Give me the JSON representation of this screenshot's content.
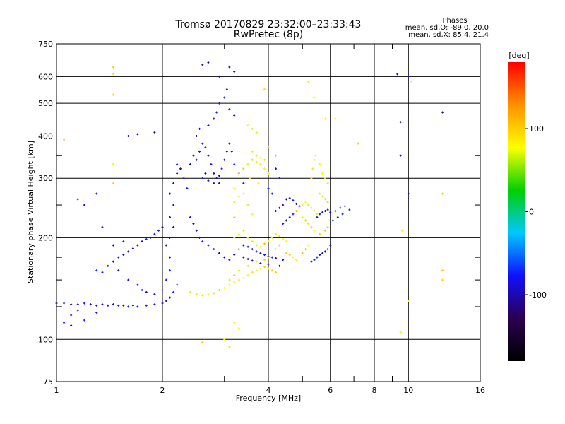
{
  "chart_data": {
    "type": "scatter",
    "title": "Tromsø 20170829 23:32:00–23:33:43",
    "subtitle": "RwPretec (8p)",
    "xlabel": "Frequency [MHz]",
    "ylabel": "Stationary phase Virtual Height [km]",
    "xscale": "log",
    "yscale": "log",
    "xlim": [
      1,
      16
    ],
    "ylim": [
      75,
      750
    ],
    "x_ticks": [
      1,
      2,
      4,
      6,
      8,
      10,
      16
    ],
    "x_minor_ticks": [
      3,
      5,
      7,
      9
    ],
    "y_ticks": [
      75,
      100,
      200,
      300,
      400,
      500,
      600,
      750
    ],
    "y_minor_ticks": [
      125,
      150,
      175,
      250,
      350
    ],
    "grid": true,
    "stats": {
      "header": "Phases",
      "line_o": "mean, sd,O: -89.0, 20.0",
      "line_x": "mean, sd,X:  85.4, 21.4"
    },
    "colorbar": {
      "label": "[deg]",
      "min": -180,
      "max": 180,
      "ticks": [
        100,
        0,
        -100
      ],
      "colormap": [
        "#000000",
        "#2b0050",
        "#1010ff",
        "#00c8ff",
        "#00d000",
        "#ffff00",
        "#ff9000",
        "#ff0000"
      ]
    },
    "series": [
      {
        "polarization": "O",
        "phase_mean": -89,
        "phase_sd": 20,
        "points": [
          [
            1.0,
            128
          ],
          [
            1.05,
            128
          ],
          [
            1.1,
            127
          ],
          [
            1.15,
            127
          ],
          [
            1.2,
            128
          ],
          [
            1.25,
            127
          ],
          [
            1.3,
            126
          ],
          [
            1.35,
            127
          ],
          [
            1.4,
            126
          ],
          [
            1.45,
            127
          ],
          [
            1.5,
            126
          ],
          [
            1.55,
            126
          ],
          [
            1.6,
            125
          ],
          [
            1.65,
            126
          ],
          [
            1.7,
            125
          ],
          [
            1.8,
            126
          ],
          [
            1.9,
            127
          ],
          [
            2.0,
            128
          ],
          [
            2.05,
            130
          ],
          [
            2.1,
            133
          ],
          [
            2.15,
            138
          ],
          [
            2.2,
            145
          ],
          [
            1.1,
            118
          ],
          [
            1.15,
            122
          ],
          [
            1.2,
            114
          ],
          [
            1.3,
            120
          ],
          [
            1.1,
            110
          ],
          [
            1.05,
            112
          ],
          [
            1.3,
            160
          ],
          [
            1.35,
            158
          ],
          [
            1.4,
            165
          ],
          [
            1.45,
            170
          ],
          [
            1.5,
            175
          ],
          [
            1.55,
            178
          ],
          [
            1.6,
            182
          ],
          [
            1.65,
            186
          ],
          [
            1.7,
            190
          ],
          [
            1.75,
            195
          ],
          [
            1.8,
            198
          ],
          [
            1.85,
            200
          ],
          [
            1.9,
            205
          ],
          [
            1.95,
            210
          ],
          [
            2.0,
            215
          ],
          [
            1.45,
            190
          ],
          [
            1.55,
            195
          ],
          [
            1.5,
            160
          ],
          [
            1.6,
            150
          ],
          [
            1.7,
            145
          ],
          [
            1.75,
            140
          ],
          [
            1.8,
            138
          ],
          [
            1.9,
            136
          ],
          [
            2.0,
            140
          ],
          [
            2.05,
            150
          ],
          [
            2.1,
            160
          ],
          [
            2.1,
            175
          ],
          [
            2.05,
            190
          ],
          [
            2.1,
            200
          ],
          [
            2.15,
            215
          ],
          [
            2.1,
            230
          ],
          [
            2.15,
            250
          ],
          [
            2.1,
            270
          ],
          [
            2.15,
            290
          ],
          [
            2.2,
            310
          ],
          [
            2.25,
            320
          ],
          [
            2.2,
            330
          ],
          [
            2.3,
            300
          ],
          [
            2.35,
            280
          ],
          [
            2.4,
            330
          ],
          [
            2.45,
            350
          ],
          [
            2.5,
            340
          ],
          [
            2.55,
            360
          ],
          [
            2.6,
            380
          ],
          [
            2.65,
            370
          ],
          [
            2.7,
            350
          ],
          [
            2.75,
            330
          ],
          [
            2.8,
            310
          ],
          [
            2.85,
            300
          ],
          [
            2.9,
            290
          ],
          [
            2.95,
            320
          ],
          [
            3.0,
            340
          ],
          [
            3.05,
            360
          ],
          [
            3.1,
            380
          ],
          [
            3.15,
            360
          ],
          [
            2.6,
            300
          ],
          [
            2.65,
            310
          ],
          [
            2.7,
            295
          ],
          [
            2.8,
            290
          ],
          [
            2.9,
            305
          ],
          [
            3.2,
            330
          ],
          [
            3.3,
            310
          ],
          [
            3.4,
            290
          ],
          [
            2.5,
            400
          ],
          [
            2.55,
            420
          ],
          [
            2.7,
            430
          ],
          [
            2.8,
            450
          ],
          [
            2.85,
            470
          ],
          [
            2.9,
            500
          ],
          [
            3.0,
            520
          ],
          [
            3.05,
            550
          ],
          [
            3.1,
            480
          ],
          [
            3.2,
            460
          ],
          [
            2.6,
            650
          ],
          [
            2.7,
            660
          ],
          [
            2.9,
            600
          ],
          [
            3.1,
            640
          ],
          [
            3.2,
            620
          ],
          [
            2.4,
            230
          ],
          [
            2.45,
            220
          ],
          [
            2.5,
            210
          ],
          [
            2.55,
            200
          ],
          [
            2.6,
            195
          ],
          [
            2.7,
            190
          ],
          [
            2.8,
            185
          ],
          [
            2.9,
            180
          ],
          [
            3.0,
            175
          ],
          [
            3.1,
            172
          ],
          [
            3.2,
            178
          ],
          [
            3.3,
            185
          ],
          [
            3.4,
            190
          ],
          [
            3.5,
            188
          ],
          [
            3.6,
            185
          ],
          [
            3.7,
            182
          ],
          [
            3.8,
            180
          ],
          [
            3.9,
            178
          ],
          [
            4.0,
            176
          ],
          [
            4.1,
            175
          ],
          [
            4.2,
            174
          ],
          [
            4.4,
            172
          ],
          [
            3.4,
            175
          ],
          [
            3.5,
            173
          ],
          [
            3.6,
            171
          ],
          [
            3.8,
            168
          ],
          [
            4.0,
            167
          ],
          [
            4.3,
            165
          ],
          [
            4.2,
            240
          ],
          [
            4.3,
            245
          ],
          [
            4.4,
            250
          ],
          [
            4.5,
            260
          ],
          [
            4.6,
            262
          ],
          [
            4.7,
            258
          ],
          [
            4.8,
            252
          ],
          [
            4.9,
            248
          ],
          [
            4.4,
            220
          ],
          [
            4.5,
            225
          ],
          [
            4.6,
            230
          ],
          [
            4.7,
            235
          ],
          [
            4.1,
            270
          ],
          [
            4.0,
            280
          ],
          [
            4.3,
            300
          ],
          [
            4.2,
            320
          ],
          [
            5.3,
            170
          ],
          [
            5.4,
            172
          ],
          [
            5.5,
            175
          ],
          [
            5.6,
            178
          ],
          [
            5.7,
            180
          ],
          [
            5.8,
            182
          ],
          [
            5.9,
            185
          ],
          [
            6.0,
            190
          ],
          [
            5.5,
            230
          ],
          [
            5.6,
            235
          ],
          [
            5.7,
            238
          ],
          [
            5.8,
            240
          ],
          [
            5.9,
            242
          ],
          [
            6.0,
            238
          ],
          [
            6.2,
            240
          ],
          [
            6.4,
            245
          ],
          [
            6.6,
            248
          ],
          [
            6.8,
            242
          ],
          [
            6.5,
            235
          ],
          [
            6.3,
            230
          ],
          [
            6.1,
            225
          ],
          [
            1.6,
            400
          ],
          [
            1.7,
            405
          ],
          [
            1.9,
            410
          ],
          [
            1.15,
            260
          ],
          [
            1.2,
            250
          ],
          [
            1.3,
            270
          ],
          [
            1.35,
            215
          ],
          [
            9.5,
            350
          ],
          [
            9.5,
            440
          ],
          [
            10.0,
            270
          ],
          [
            12.5,
            470
          ],
          [
            9.3,
            610
          ],
          [
            10.0,
            600
          ]
        ]
      },
      {
        "polarization": "X",
        "phase_mean": 85.4,
        "phase_sd": 21.4,
        "points": [
          [
            2.4,
            138
          ],
          [
            2.5,
            136
          ],
          [
            2.6,
            135
          ],
          [
            2.7,
            136
          ],
          [
            2.8,
            137
          ],
          [
            2.9,
            140
          ],
          [
            3.0,
            142
          ],
          [
            3.1,
            145
          ],
          [
            3.2,
            148
          ],
          [
            3.3,
            150
          ],
          [
            3.4,
            152
          ],
          [
            3.5,
            155
          ],
          [
            3.6,
            158
          ],
          [
            3.7,
            160
          ],
          [
            3.8,
            162
          ],
          [
            3.9,
            164
          ],
          [
            4.0,
            162
          ],
          [
            4.1,
            160
          ],
          [
            4.2,
            158
          ],
          [
            3.1,
            150
          ],
          [
            3.2,
            155
          ],
          [
            3.3,
            160
          ],
          [
            3.5,
            165
          ],
          [
            3.7,
            170
          ],
          [
            3.9,
            172
          ],
          [
            4.0,
            175
          ],
          [
            3.2,
            200
          ],
          [
            3.3,
            205
          ],
          [
            3.4,
            210
          ],
          [
            3.5,
            200
          ],
          [
            3.6,
            195
          ],
          [
            3.7,
            190
          ],
          [
            3.8,
            188
          ],
          [
            3.9,
            192
          ],
          [
            4.0,
            196
          ],
          [
            4.1,
            200
          ],
          [
            4.2,
            205
          ],
          [
            4.3,
            202
          ],
          [
            4.4,
            198
          ],
          [
            4.5,
            195
          ],
          [
            3.2,
            230
          ],
          [
            3.3,
            240
          ],
          [
            3.2,
            255
          ],
          [
            3.3,
            265
          ],
          [
            3.2,
            280
          ],
          [
            3.4,
            270
          ],
          [
            3.5,
            250
          ],
          [
            3.6,
            235
          ],
          [
            3.3,
            310
          ],
          [
            3.4,
            320
          ],
          [
            3.5,
            330
          ],
          [
            3.6,
            340
          ],
          [
            3.7,
            335
          ],
          [
            3.8,
            330
          ],
          [
            3.9,
            320
          ],
          [
            4.0,
            310
          ],
          [
            3.6,
            360
          ],
          [
            3.7,
            350
          ],
          [
            3.8,
            345
          ],
          [
            3.9,
            340
          ],
          [
            3.55,
            300
          ],
          [
            3.75,
            290
          ],
          [
            4.8,
            240
          ],
          [
            4.9,
            245
          ],
          [
            5.0,
            250
          ],
          [
            5.1,
            255
          ],
          [
            5.2,
            250
          ],
          [
            5.3,
            245
          ],
          [
            5.4,
            240
          ],
          [
            5.5,
            235
          ],
          [
            5.0,
            230
          ],
          [
            5.1,
            225
          ],
          [
            5.2,
            220
          ],
          [
            5.3,
            215
          ],
          [
            5.4,
            210
          ],
          [
            5.6,
            205
          ],
          [
            5.8,
            210
          ],
          [
            5.9,
            215
          ],
          [
            5.3,
            300
          ],
          [
            5.35,
            320
          ],
          [
            5.4,
            340
          ],
          [
            5.45,
            350
          ],
          [
            5.6,
            330
          ],
          [
            5.7,
            310
          ],
          [
            5.8,
            300
          ],
          [
            5.9,
            290
          ],
          [
            5.6,
            270
          ],
          [
            5.7,
            265
          ],
          [
            5.8,
            260
          ],
          [
            5.9,
            255
          ],
          [
            4.5,
            180
          ],
          [
            4.6,
            178
          ],
          [
            4.7,
            175
          ],
          [
            4.8,
            172
          ],
          [
            5.0,
            180
          ],
          [
            5.1,
            185
          ],
          [
            5.2,
            190
          ],
          [
            4.3,
            190
          ],
          [
            4.2,
            185
          ],
          [
            1.45,
            640
          ],
          [
            1.45,
            610
          ],
          [
            1.45,
            530
          ],
          [
            1.05,
            390
          ],
          [
            1.45,
            290
          ],
          [
            1.45,
            330
          ],
          [
            3.5,
            430
          ],
          [
            3.6,
            420
          ],
          [
            3.7,
            410
          ],
          [
            4.0,
            370
          ],
          [
            4.2,
            350
          ],
          [
            3.9,
            550
          ],
          [
            5.2,
            580
          ],
          [
            5.4,
            520
          ],
          [
            5.8,
            450
          ],
          [
            7.2,
            380
          ],
          [
            6.2,
            450
          ],
          [
            2.6,
            98
          ],
          [
            3.0,
            100
          ],
          [
            3.1,
            95
          ],
          [
            3.2,
            112
          ],
          [
            3.3,
            108
          ],
          [
            9.5,
            105
          ],
          [
            9.6,
            210
          ],
          [
            10.2,
            580
          ],
          [
            12.5,
            160
          ],
          [
            12.5,
            270
          ],
          [
            10.0,
            130
          ],
          [
            12.5,
            150
          ]
        ]
      }
    ]
  }
}
